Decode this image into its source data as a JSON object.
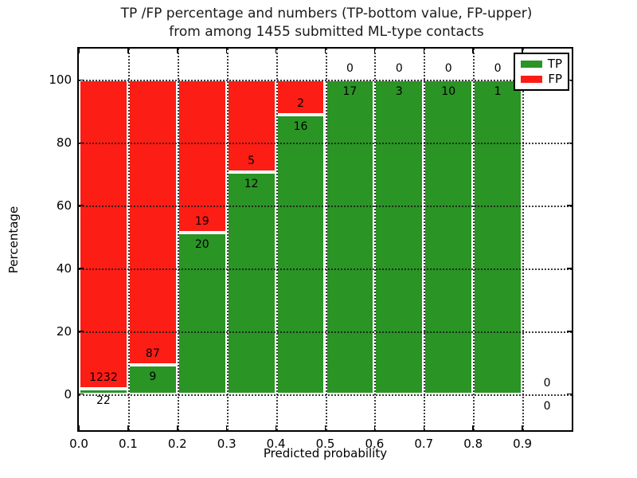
{
  "chart_data": {
    "type": "bar",
    "subtype": "stacked-percentage-histogram",
    "title_lines": [
      "TP /FP percentage and numbers (TP-bottom value, FP-upper)",
      "from among 1455 submitted ML-type contacts"
    ],
    "xlabel": "Predicted probability",
    "ylabel": "Percentage",
    "total_contacts": 1455,
    "bin_edges": [
      0.0,
      0.1,
      0.2,
      0.3,
      0.4,
      0.5,
      0.6,
      0.7,
      0.8,
      0.9,
      1.0
    ],
    "series": [
      {
        "name": "TP",
        "color": "#2a9425",
        "counts": [
          22,
          9,
          20,
          12,
          16,
          17,
          3,
          10,
          1,
          0
        ]
      },
      {
        "name": "FP",
        "color": "#fc1d15",
        "counts": [
          1232,
          87,
          19,
          5,
          2,
          0,
          0,
          0,
          0,
          0
        ]
      }
    ],
    "tp_percent_of_bin": [
      1.75,
      9.38,
      51.28,
      70.59,
      88.89,
      100,
      100,
      100,
      100,
      null
    ],
    "xticks": [
      0.0,
      0.1,
      0.2,
      0.3,
      0.4,
      0.5,
      0.6,
      0.7,
      0.8,
      0.9
    ],
    "yticks": [
      0,
      20,
      40,
      60,
      80,
      100
    ],
    "xlim": [
      0.0,
      1.0
    ],
    "ylim": [
      -11.5,
      110
    ],
    "grid": "dotted-both-axes",
    "legend": {
      "position": "upper right",
      "entries": [
        {
          "label": "TP",
          "color": "#2a9425"
        },
        {
          "label": "FP",
          "color": "#fc1d15"
        }
      ]
    }
  }
}
